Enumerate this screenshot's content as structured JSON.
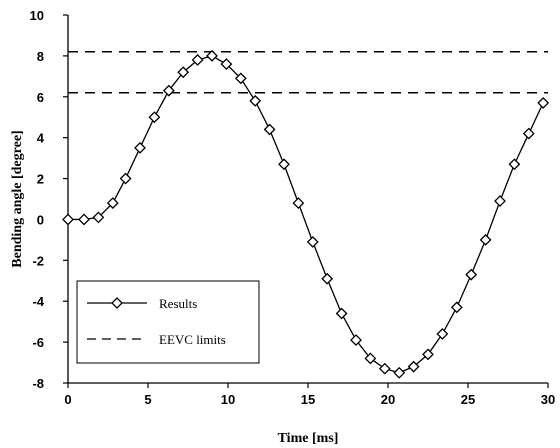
{
  "chart_data": {
    "type": "line",
    "xlabel": "Time [ms]",
    "ylabel": "Bending angle [degree]",
    "xlim": [
      0,
      30
    ],
    "ylim": [
      -8,
      10
    ],
    "x_ticks": [
      0,
      5,
      10,
      15,
      20,
      25,
      30
    ],
    "y_ticks": [
      -8,
      -6,
      -4,
      -2,
      0,
      2,
      4,
      6,
      8,
      10
    ],
    "grid": false,
    "legend_position": "bottom-left",
    "series": [
      {
        "name": "Results",
        "style": "solid line with diamond markers",
        "color": "#000000",
        "x": [
          0,
          1,
          1.9,
          2.8,
          3.6,
          4.5,
          5.4,
          6.3,
          7.2,
          8.1,
          9.0,
          9.9,
          10.8,
          11.7,
          12.6,
          13.5,
          14.4,
          15.3,
          16.2,
          17.1,
          18.0,
          18.9,
          19.8,
          20.7,
          21.6,
          22.5,
          23.4,
          24.3,
          25.2,
          26.1,
          27.0,
          27.9,
          28.8,
          29.7
        ],
        "y": [
          0,
          0,
          0.1,
          0.8,
          2.0,
          3.5,
          5.0,
          6.3,
          7.2,
          7.8,
          8.0,
          7.6,
          6.9,
          5.8,
          4.4,
          2.7,
          0.8,
          -1.1,
          -2.9,
          -4.6,
          -5.9,
          -6.8,
          -7.3,
          -7.5,
          -7.2,
          -6.6,
          -5.6,
          -4.3,
          -2.7,
          -1.0,
          0.9,
          2.7,
          4.2,
          5.7
        ]
      },
      {
        "name": "EEVC limits",
        "style": "dashed horizontal lines",
        "color": "#000000",
        "values": [
          8.2,
          6.2
        ]
      }
    ]
  }
}
